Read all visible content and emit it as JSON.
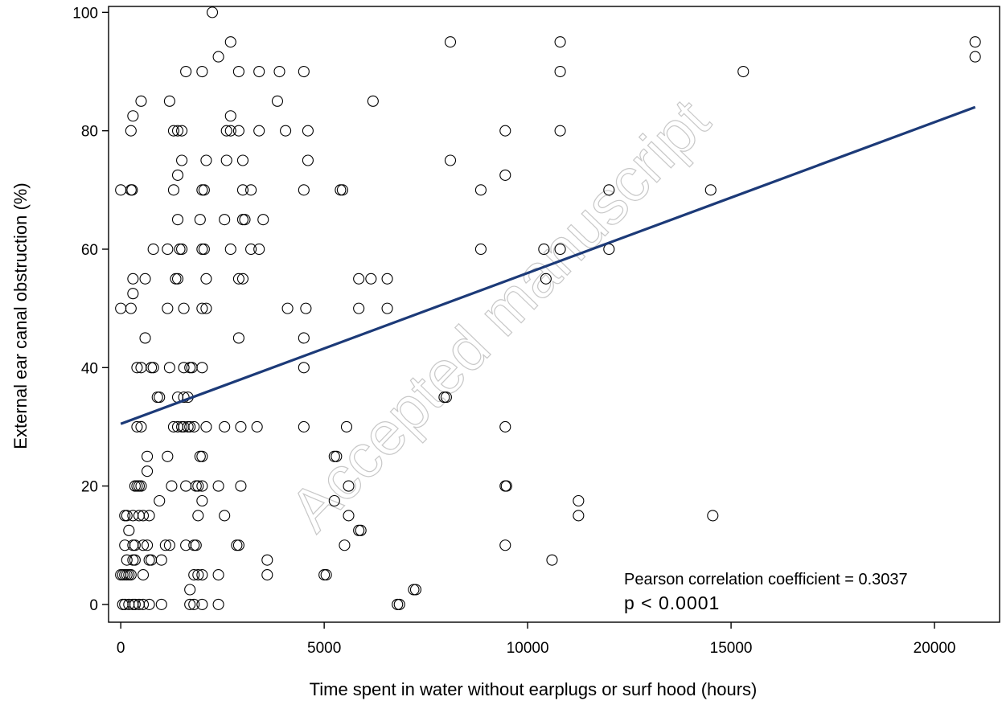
{
  "chart_data": {
    "type": "scatter",
    "xlabel": "Time spent in water without earplugs or surf hood (hours)",
    "ylabel": "External ear canal obstruction (%)",
    "xlim": [
      -300,
      21600
    ],
    "ylim": [
      -3,
      101
    ],
    "x_ticks": [
      0,
      5000,
      10000,
      15000,
      20000
    ],
    "y_ticks": [
      0,
      20,
      40,
      60,
      80,
      100
    ],
    "marker": "open-circle",
    "fit_line": {
      "x": [
        0,
        21000
      ],
      "y": [
        30.5,
        84
      ],
      "color": "#1c3a78"
    },
    "annotations": [
      "Pearson correlation coefficient = 0.3037",
      "p < 0.0001"
    ],
    "watermark": "Accepted manuscript",
    "points": [
      [
        2250,
        100
      ],
      [
        2700,
        95
      ],
      [
        8100,
        95
      ],
      [
        10800,
        95
      ],
      [
        21000,
        95
      ],
      [
        2400,
        92.5
      ],
      [
        21000,
        92.5
      ],
      [
        1600,
        90
      ],
      [
        2000,
        90
      ],
      [
        2900,
        90
      ],
      [
        3400,
        90
      ],
      [
        3900,
        90
      ],
      [
        4500,
        90
      ],
      [
        10800,
        90
      ],
      [
        15300,
        90
      ],
      [
        500,
        85
      ],
      [
        1200,
        85
      ],
      [
        3850,
        85
      ],
      [
        6200,
        85
      ],
      [
        300,
        82.5
      ],
      [
        2700,
        82.5
      ],
      [
        250,
        80
      ],
      [
        1300,
        80
      ],
      [
        1400,
        80
      ],
      [
        1500,
        80
      ],
      [
        2600,
        80
      ],
      [
        2700,
        80
      ],
      [
        2900,
        80
      ],
      [
        3400,
        80
      ],
      [
        4050,
        80
      ],
      [
        4600,
        80
      ],
      [
        9450,
        80
      ],
      [
        10800,
        80
      ],
      [
        1500,
        75
      ],
      [
        2100,
        75
      ],
      [
        2600,
        75
      ],
      [
        3000,
        75
      ],
      [
        4600,
        75
      ],
      [
        8100,
        75
      ],
      [
        1400,
        72.5
      ],
      [
        9450,
        72.5
      ],
      [
        0,
        70
      ],
      [
        250,
        70
      ],
      [
        280,
        70
      ],
      [
        1300,
        70
      ],
      [
        2000,
        70
      ],
      [
        2050,
        70
      ],
      [
        3000,
        70
      ],
      [
        3200,
        70
      ],
      [
        4500,
        70
      ],
      [
        5400,
        70
      ],
      [
        5450,
        70
      ],
      [
        8850,
        70
      ],
      [
        12000,
        70
      ],
      [
        14500,
        70
      ],
      [
        1400,
        65
      ],
      [
        1950,
        65
      ],
      [
        2550,
        65
      ],
      [
        3000,
        65
      ],
      [
        3050,
        65
      ],
      [
        3500,
        65
      ],
      [
        800,
        60
      ],
      [
        1150,
        60
      ],
      [
        1450,
        60
      ],
      [
        1500,
        60
      ],
      [
        2000,
        60
      ],
      [
        2050,
        60
      ],
      [
        2700,
        60
      ],
      [
        3200,
        60
      ],
      [
        3400,
        60
      ],
      [
        8850,
        60
      ],
      [
        10400,
        60
      ],
      [
        10800,
        60
      ],
      [
        12000,
        60
      ],
      [
        300,
        55
      ],
      [
        600,
        55
      ],
      [
        1350,
        55
      ],
      [
        1400,
        55
      ],
      [
        2100,
        55
      ],
      [
        2900,
        55
      ],
      [
        3000,
        55
      ],
      [
        5850,
        55
      ],
      [
        6150,
        55
      ],
      [
        6550,
        55
      ],
      [
        10450,
        55
      ],
      [
        300,
        52.5
      ],
      [
        0,
        50
      ],
      [
        250,
        50
      ],
      [
        1150,
        50
      ],
      [
        1550,
        50
      ],
      [
        2000,
        50
      ],
      [
        2100,
        50
      ],
      [
        4100,
        50
      ],
      [
        4550,
        50
      ],
      [
        5850,
        50
      ],
      [
        6550,
        50
      ],
      [
        600,
        45
      ],
      [
        2900,
        45
      ],
      [
        4500,
        45
      ],
      [
        400,
        40
      ],
      [
        500,
        40
      ],
      [
        750,
        40
      ],
      [
        800,
        40
      ],
      [
        1200,
        40
      ],
      [
        1550,
        40
      ],
      [
        1700,
        40
      ],
      [
        1750,
        40
      ],
      [
        2000,
        40
      ],
      [
        4500,
        40
      ],
      [
        900,
        35
      ],
      [
        950,
        35
      ],
      [
        1400,
        35
      ],
      [
        1550,
        35
      ],
      [
        1650,
        35
      ],
      [
        7950,
        35
      ],
      [
        8000,
        35
      ],
      [
        400,
        30
      ],
      [
        500,
        30
      ],
      [
        1300,
        30
      ],
      [
        1400,
        30
      ],
      [
        1500,
        30
      ],
      [
        1550,
        30
      ],
      [
        1650,
        30
      ],
      [
        1700,
        30
      ],
      [
        1800,
        30
      ],
      [
        2100,
        30
      ],
      [
        2550,
        30
      ],
      [
        2950,
        30
      ],
      [
        3350,
        30
      ],
      [
        4500,
        30
      ],
      [
        5550,
        30
      ],
      [
        9450,
        30
      ],
      [
        650,
        25
      ],
      [
        1150,
        25
      ],
      [
        1950,
        25
      ],
      [
        2000,
        25
      ],
      [
        5250,
        25
      ],
      [
        5300,
        25
      ],
      [
        650,
        22.5
      ],
      [
        350,
        20
      ],
      [
        400,
        20
      ],
      [
        450,
        20
      ],
      [
        500,
        20
      ],
      [
        1250,
        20
      ],
      [
        1600,
        20
      ],
      [
        1850,
        20
      ],
      [
        1900,
        20
      ],
      [
        2000,
        20
      ],
      [
        2400,
        20
      ],
      [
        2950,
        20
      ],
      [
        5600,
        20
      ],
      [
        9450,
        20
      ],
      [
        9480,
        20
      ],
      [
        950,
        17.5
      ],
      [
        2000,
        17.5
      ],
      [
        5250,
        17.5
      ],
      [
        11250,
        17.5
      ],
      [
        100,
        15
      ],
      [
        150,
        15
      ],
      [
        300,
        15
      ],
      [
        450,
        15
      ],
      [
        550,
        15
      ],
      [
        700,
        15
      ],
      [
        1900,
        15
      ],
      [
        2550,
        15
      ],
      [
        5600,
        15
      ],
      [
        11250,
        15
      ],
      [
        14550,
        15
      ],
      [
        200,
        12.5
      ],
      [
        5850,
        12.5
      ],
      [
        5900,
        12.5
      ],
      [
        100,
        10
      ],
      [
        300,
        10
      ],
      [
        350,
        10
      ],
      [
        550,
        10
      ],
      [
        650,
        10
      ],
      [
        1100,
        10
      ],
      [
        1200,
        10
      ],
      [
        1600,
        10
      ],
      [
        1800,
        10
      ],
      [
        1850,
        10
      ],
      [
        2850,
        10
      ],
      [
        2900,
        10
      ],
      [
        5500,
        10
      ],
      [
        9450,
        10
      ],
      [
        150,
        7.5
      ],
      [
        300,
        7.5
      ],
      [
        350,
        7.5
      ],
      [
        700,
        7.5
      ],
      [
        750,
        7.5
      ],
      [
        1000,
        7.5
      ],
      [
        3600,
        7.5
      ],
      [
        10600,
        7.5
      ],
      [
        0,
        5
      ],
      [
        50,
        5
      ],
      [
        100,
        5
      ],
      [
        150,
        5
      ],
      [
        200,
        5
      ],
      [
        250,
        5
      ],
      [
        550,
        5
      ],
      [
        1800,
        5
      ],
      [
        1900,
        5
      ],
      [
        2000,
        5
      ],
      [
        2400,
        5
      ],
      [
        3600,
        5
      ],
      [
        5000,
        5
      ],
      [
        5050,
        5
      ],
      [
        1700,
        2.5
      ],
      [
        7200,
        2.5
      ],
      [
        7250,
        2.5
      ],
      [
        50,
        0
      ],
      [
        100,
        0
      ],
      [
        200,
        0
      ],
      [
        300,
        0
      ],
      [
        350,
        0
      ],
      [
        450,
        0
      ],
      [
        550,
        0
      ],
      [
        700,
        0
      ],
      [
        1000,
        0
      ],
      [
        1700,
        0
      ],
      [
        1800,
        0
      ],
      [
        2000,
        0
      ],
      [
        2400,
        0
      ],
      [
        6800,
        0
      ],
      [
        6850,
        0
      ]
    ]
  }
}
